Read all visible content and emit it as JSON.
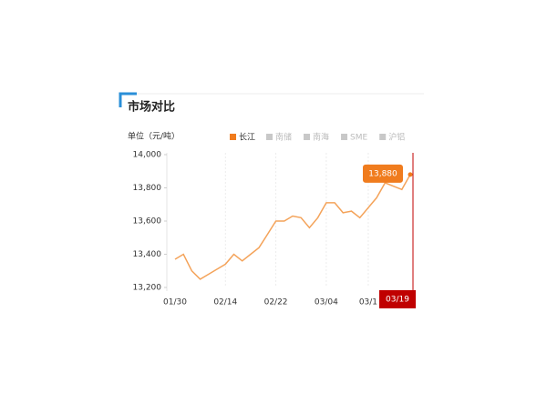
{
  "chart_data": {
    "type": "line",
    "title": "市场对比",
    "unit_label": "单位（元/吨）",
    "categories": [
      "01/30",
      null,
      null,
      null,
      null,
      null,
      "02/14",
      null,
      null,
      null,
      null,
      null,
      "02/22",
      null,
      null,
      null,
      null,
      null,
      "03/04",
      null,
      null,
      null,
      null,
      "03/1",
      null,
      null,
      null,
      null,
      "03/19"
    ],
    "series": [
      {
        "name": "长江",
        "color": "#f4a35a",
        "values": [
          13370,
          13400,
          13300,
          13250,
          13280,
          13310,
          13340,
          13400,
          13360,
          13400,
          13440,
          13520,
          13600,
          13600,
          13630,
          13620,
          13560,
          13620,
          13710,
          13710,
          13650,
          13660,
          13620,
          13680,
          13740,
          13830,
          13810,
          13790,
          13880
        ],
        "value_labels": [
          null,
          null,
          null,
          null,
          null,
          null,
          null,
          null,
          null,
          null,
          null,
          null,
          null,
          null,
          null,
          null,
          null,
          null,
          null,
          null,
          null,
          null,
          null,
          null,
          null,
          null,
          null,
          null,
          "13,880"
        ]
      }
    ],
    "legend_active_color": "#f07c1e",
    "other_legend_items": [
      {
        "name": "南储"
      },
      {
        "name": "南海"
      },
      {
        "name": "SME"
      },
      {
        "name": "沪铝"
      }
    ],
    "legend_inactive_color": "#c8c8c8",
    "ylim": [
      13200,
      14000
    ],
    "yticks": [
      {
        "value": 13200,
        "label": "13,200"
      },
      {
        "value": 13400,
        "label": "13,400"
      },
      {
        "value": 13600,
        "label": "13,600"
      },
      {
        "value": 13800,
        "label": "13,800"
      },
      {
        "value": 14000,
        "label": "14,000"
      }
    ],
    "grid": true
  }
}
